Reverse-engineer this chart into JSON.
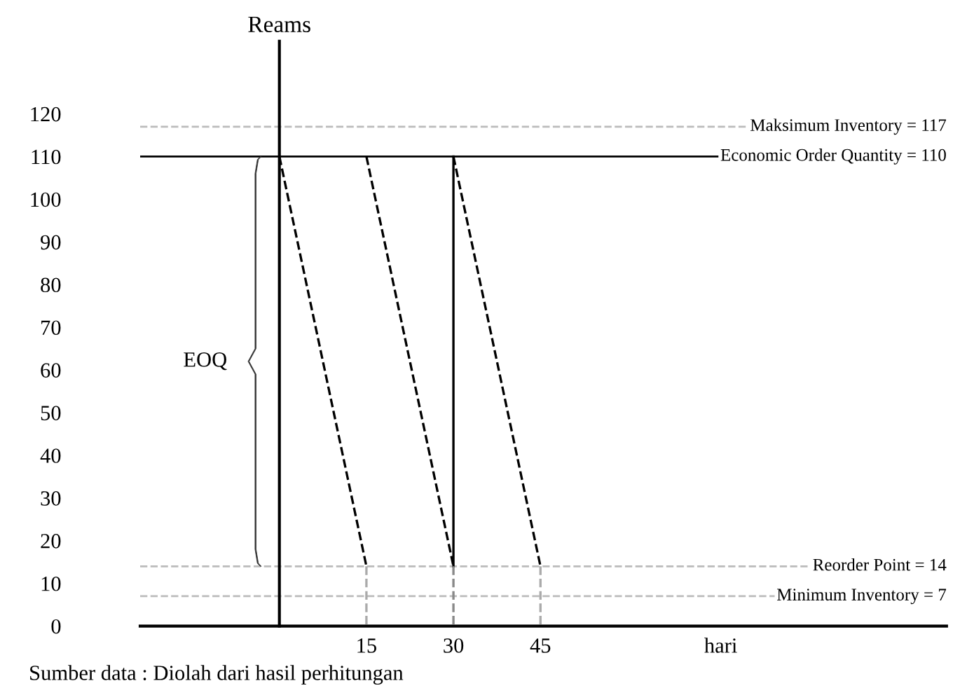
{
  "chart_data": {
    "type": "line",
    "ylabel": "Reams",
    "xlabel": "hari",
    "xlim": [
      -24,
      115
    ],
    "xticks": [
      15,
      30,
      45
    ],
    "ylim": [
      0,
      137
    ],
    "yticks": [
      0,
      10,
      20,
      30,
      40,
      50,
      60,
      70,
      80,
      90,
      100,
      110,
      120
    ],
    "series": [
      {
        "color": "#000000",
        "line_style": "dashed",
        "x": [
          0,
          15
        ],
        "values": [
          110,
          14
        ]
      },
      {
        "color": "#000000",
        "line_style": "dashed",
        "x": [
          15,
          30
        ],
        "values": [
          110,
          14
        ]
      },
      {
        "color": "#000000",
        "line_style": "dashed",
        "x": [
          30,
          45
        ],
        "values": [
          110,
          14
        ]
      },
      {
        "color": "#000000",
        "line_style": "solid",
        "x": [
          30,
          30
        ],
        "values": [
          14,
          110
        ]
      },
      {
        "color": "#aaaaaa",
        "line_style": "dashed",
        "x": [
          15,
          15
        ],
        "values": [
          14,
          0
        ]
      },
      {
        "color": "#888888",
        "line_style": "dashed",
        "x": [
          30,
          30
        ],
        "values": [
          14,
          0
        ]
      },
      {
        "color": "#aaaaaa",
        "line_style": "dashed",
        "x": [
          45,
          45
        ],
        "values": [
          14,
          0
        ]
      }
    ],
    "ref_lines": [
      {
        "axis": "y",
        "value": 117,
        "label": "Maksimum Inventory = 117",
        "color": "#bbbbbb",
        "line_style": "dashed"
      },
      {
        "axis": "y",
        "value": 110,
        "label": "Economic Order Quantity = 110",
        "color": "#000000",
        "line_style": "solid"
      },
      {
        "axis": "y",
        "value": 14,
        "label": "Reorder Point = 14",
        "color": "#bbbbbb",
        "line_style": "dashed"
      },
      {
        "axis": "y",
        "value": 7,
        "label": "Minimum Inventory = 7",
        "color": "#bbbbbb",
        "line_style": "dashed"
      }
    ],
    "annotations": [
      "EOQ",
      "Sumber data : Diolah dari hasil perhitungan"
    ]
  }
}
